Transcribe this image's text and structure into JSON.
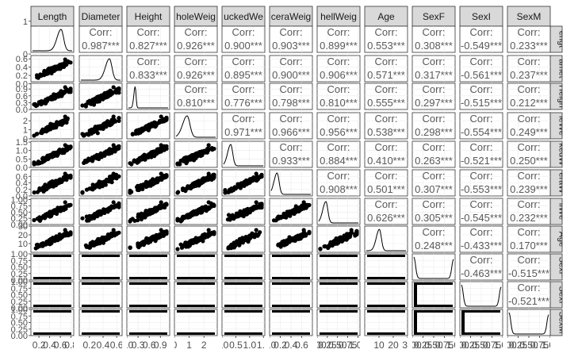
{
  "chart_data": {
    "type": "pairs-matrix",
    "variables": [
      "Length",
      "Diameter",
      "Height",
      "WholeWeight",
      "ShuckedWeight",
      "VisceraWeight",
      "ShellWeight",
      "Age",
      "SexF",
      "SexI",
      "SexM"
    ],
    "column_strip_labels": [
      "Length",
      "Diameter",
      "Height",
      "holeWeig",
      "uckedWe",
      "ceraWeig",
      "hellWeig",
      "Age",
      "SexF",
      "SexI",
      "SexM"
    ],
    "row_strip_labels": [
      "engt",
      "amet",
      "Heigh",
      "leWe",
      "kedW",
      "eraW",
      "llWe",
      "Age",
      "SexF",
      "SexI",
      "SexM"
    ],
    "corr_label": "Corr:",
    "correlations": [
      [
        null,
        "0.987***",
        "0.827***",
        "0.926***",
        "0.900***",
        "0.903***",
        "0.899***",
        "0.553***",
        "0.308***",
        "-0.549***",
        "0.233***"
      ],
      [
        null,
        null,
        "0.833***",
        "0.926***",
        "0.895***",
        "0.900***",
        "0.906***",
        "0.571***",
        "0.317***",
        "-0.561***",
        "0.237***"
      ],
      [
        null,
        null,
        null,
        "0.810***",
        "0.776***",
        "0.798***",
        "0.810***",
        "0.555***",
        "0.297***",
        "-0.515***",
        "0.212***"
      ],
      [
        null,
        null,
        null,
        null,
        "0.971***",
        "0.966***",
        "0.956***",
        "0.538***",
        "0.298***",
        "-0.554***",
        "0.249***"
      ],
      [
        null,
        null,
        null,
        null,
        null,
        "0.933***",
        "0.884***",
        "0.410***",
        "0.263***",
        "-0.521***",
        "0.250***"
      ],
      [
        null,
        null,
        null,
        null,
        null,
        null,
        "0.908***",
        "0.501***",
        "0.307***",
        "-0.553***",
        "0.239***"
      ],
      [
        null,
        null,
        null,
        null,
        null,
        null,
        null,
        "0.626***",
        "0.305***",
        "-0.545***",
        "0.232***"
      ],
      [
        null,
        null,
        null,
        null,
        null,
        null,
        null,
        null,
        "0.248***",
        "-0.433***",
        "0.170***"
      ],
      [
        null,
        null,
        null,
        null,
        null,
        null,
        null,
        null,
        null,
        "-0.463***",
        "-0.515***"
      ],
      [
        null,
        null,
        null,
        null,
        null,
        null,
        null,
        null,
        null,
        null,
        "-0.521***"
      ],
      [
        null,
        null,
        null,
        null,
        null,
        null,
        null,
        null,
        null,
        null,
        null
      ]
    ],
    "ranges": [
      [
        0.05,
        0.85
      ],
      [
        0.05,
        0.68
      ],
      [
        0,
        1.15
      ],
      [
        0,
        2.9
      ],
      [
        0,
        1.55
      ],
      [
        0,
        0.8
      ],
      [
        0,
        1.05
      ],
      [
        0,
        30
      ],
      [
        0,
        1
      ],
      [
        0,
        1
      ],
      [
        0,
        1
      ]
    ],
    "x_tick_labels": [
      [
        "0.2",
        "0.4",
        "0.6",
        "0.8"
      ],
      [
        "0.2",
        "0.4",
        "0.6"
      ],
      [
        "0.0",
        "0.3",
        "0.6",
        "0.9"
      ],
      [
        "0",
        "1",
        "2"
      ],
      [
        "0.0",
        "0.5",
        "1.0",
        "1.5"
      ],
      [
        "0.0",
        "0.2",
        "0.4",
        "0.6"
      ],
      [
        "0.00",
        "0.25",
        "0.50",
        "0.75",
        "1.00"
      ],
      [
        "10",
        "20",
        "30"
      ],
      [
        "0.00",
        "0.25",
        "0.50",
        "0.75",
        "1.00"
      ],
      [
        "0.00",
        "0.25",
        "0.50",
        "0.75",
        "1.00"
      ],
      [
        "0.00",
        "0.25",
        "0.50",
        "0.75",
        "1.00"
      ]
    ],
    "x_tick_values": [
      [
        0.2,
        0.4,
        0.6,
        0.8
      ],
      [
        0.2,
        0.4,
        0.6
      ],
      [
        0.0,
        0.3,
        0.6,
        0.9
      ],
      [
        0,
        1,
        2
      ],
      [
        0.0,
        0.5,
        1.0,
        1.5
      ],
      [
        0.0,
        0.2,
        0.4,
        0.6
      ],
      [
        0.0,
        0.25,
        0.5,
        0.75,
        1.0
      ],
      [
        10,
        20,
        30
      ],
      [
        0.0,
        0.25,
        0.5,
        0.75,
        1.0
      ],
      [
        0.0,
        0.25,
        0.5,
        0.75,
        1.0
      ],
      [
        0.0,
        0.25,
        0.5,
        0.75,
        1.0
      ]
    ],
    "y_tick_labels": [
      [
        "0",
        "1",
        "2",
        "3"
      ],
      [
        "0.0",
        "0.2",
        "0.4",
        "0.6"
      ],
      [
        "0.0",
        "0.3",
        "0.6",
        "0.9"
      ],
      [
        "0",
        "1",
        "2"
      ],
      [
        "0.0",
        "0.5",
        "1.0",
        "1.5"
      ],
      [
        "0.0",
        "0.2",
        "0.4",
        "0.6"
      ],
      [
        "0.00",
        "0.25",
        "0.50",
        "0.75",
        "1.00"
      ],
      [
        "10",
        "20",
        "30"
      ],
      [
        "0.00",
        "0.25",
        "0.50",
        "0.75",
        "1.00"
      ],
      [
        "0.00",
        "0.25",
        "0.50",
        "0.75",
        "1.00"
      ],
      [
        "0.00",
        "0.25",
        "0.50",
        "0.75",
        "1.00"
      ]
    ],
    "y_tick_values": [
      [
        0,
        1,
        2,
        3
      ],
      [
        0.0,
        0.2,
        0.4,
        0.6
      ],
      [
        0.0,
        0.3,
        0.6,
        0.9
      ],
      [
        0,
        1,
        2
      ],
      [
        0.0,
        0.5,
        1.0,
        1.5
      ],
      [
        0.0,
        0.2,
        0.4,
        0.6
      ],
      [
        0.0,
        0.25,
        0.5,
        0.75,
        1.0
      ],
      [
        10,
        20,
        30
      ],
      [
        0.0,
        0.25,
        0.5,
        0.75,
        1.0
      ],
      [
        0.0,
        0.25,
        0.5,
        0.75,
        1.0
      ],
      [
        0.0,
        0.25,
        0.5,
        0.75,
        1.0
      ]
    ],
    "density_peak_position": [
      0.72,
      0.72,
      0.17,
      0.28,
      0.18,
      0.15,
      0.18,
      0.33,
      null,
      null,
      null
    ],
    "density_peak_width": [
      0.09,
      0.09,
      0.03,
      0.1,
      0.07,
      0.07,
      0.07,
      0.07,
      null,
      null,
      null
    ],
    "binary_proportion_true": [
      null,
      null,
      null,
      null,
      null,
      null,
      null,
      null,
      0.31,
      0.32,
      0.37
    ],
    "colors": {
      "strip_fill": "#d9d9d9",
      "strip_border": "#333333",
      "panel_border": "#333333",
      "grid": "#ebebeb",
      "points": "#000000",
      "corr_text": "#595959",
      "tick_text": "#4d4d4d"
    },
    "grid": true
  }
}
